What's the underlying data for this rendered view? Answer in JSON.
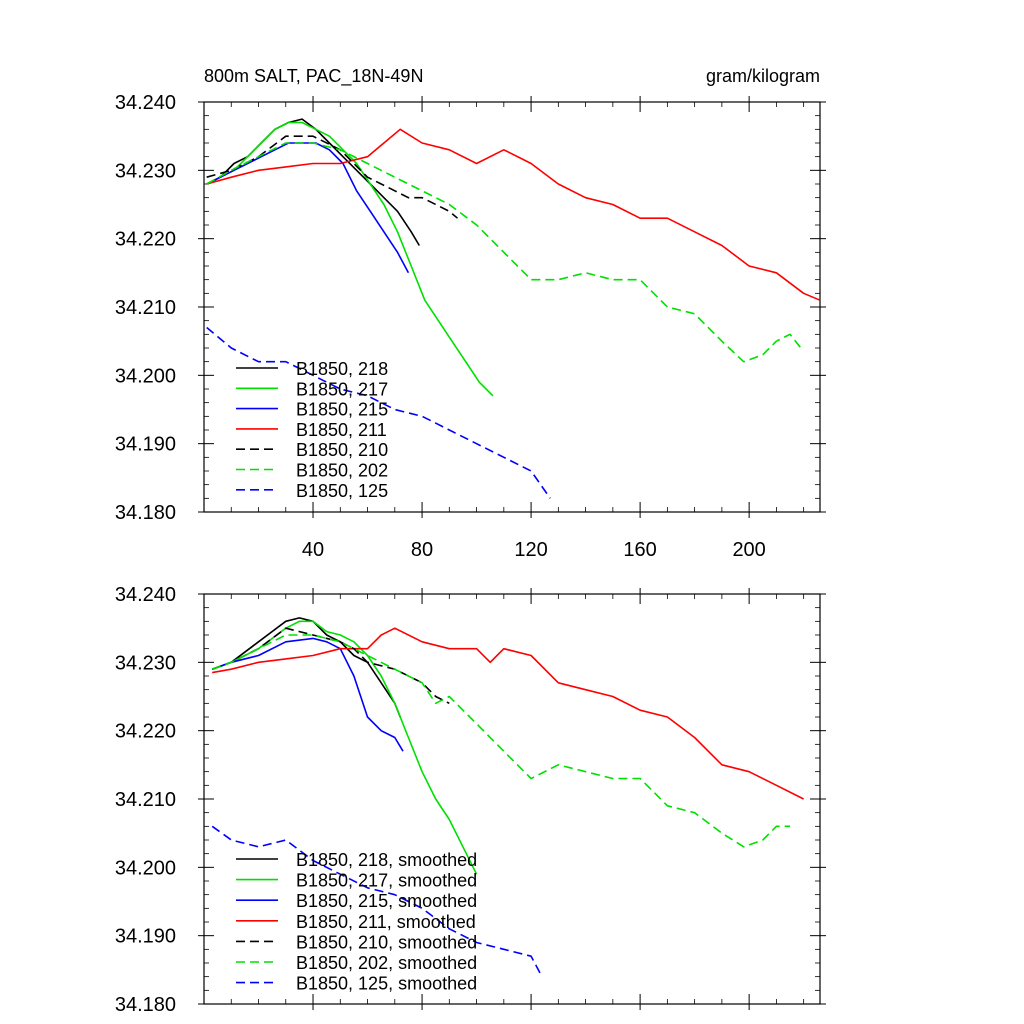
{
  "chart_data": [
    {
      "type": "line",
      "title": "800m SALT, PAC_18N-49N",
      "units": "gram/kilogram",
      "xlim": [
        0,
        226
      ],
      "ylim": [
        34.18,
        34.24
      ],
      "x_ticks": [
        40,
        80,
        120,
        160,
        200
      ],
      "x_tick_labels": [
        "40",
        "80",
        "120",
        "160",
        "200"
      ],
      "y_ticks": [
        34.18,
        34.19,
        34.2,
        34.21,
        34.22,
        34.23,
        34.24
      ],
      "y_tick_labels": [
        "34.180",
        "34.190",
        "34.200",
        "34.210",
        "34.220",
        "34.230",
        "34.240"
      ],
      "legend_position": "bottom-left",
      "series": [
        {
          "name": "B1850, 218",
          "color": "#000000",
          "dash": "solid",
          "x": [
            1,
            6,
            11,
            16,
            21,
            26,
            31,
            36,
            41,
            46,
            51,
            56,
            61,
            66,
            71,
            76,
            79
          ],
          "y": [
            34.228,
            34.229,
            34.231,
            34.232,
            34.234,
            34.236,
            34.237,
            34.2375,
            34.236,
            34.234,
            34.232,
            34.23,
            34.228,
            34.226,
            34.224,
            34.221,
            34.219
          ]
        },
        {
          "name": "B1850, 217",
          "color": "#00e000",
          "dash": "solid",
          "x": [
            1,
            6,
            11,
            16,
            21,
            26,
            31,
            36,
            41,
            46,
            51,
            56,
            61,
            66,
            71,
            76,
            81,
            86,
            91,
            96,
            101,
            106
          ],
          "y": [
            34.228,
            34.229,
            34.23,
            34.232,
            34.234,
            34.236,
            34.237,
            34.237,
            34.236,
            34.235,
            34.233,
            34.231,
            34.228,
            34.225,
            34.221,
            34.216,
            34.211,
            34.208,
            34.205,
            34.202,
            34.199,
            34.197
          ]
        },
        {
          "name": "B1850, 215",
          "color": "#0000ff",
          "dash": "solid",
          "x": [
            1,
            6,
            11,
            16,
            21,
            26,
            31,
            36,
            41,
            46,
            51,
            56,
            61,
            66,
            71,
            75
          ],
          "y": [
            34.228,
            34.229,
            34.23,
            34.231,
            34.232,
            34.233,
            34.234,
            34.234,
            34.234,
            34.233,
            34.231,
            34.227,
            34.224,
            34.221,
            34.218,
            34.215
          ]
        },
        {
          "name": "B1850, 211",
          "color": "#ff0000",
          "dash": "solid",
          "x": [
            1,
            10,
            20,
            30,
            40,
            50,
            60,
            66,
            72,
            80,
            90,
            100,
            110,
            120,
            130,
            140,
            150,
            160,
            170,
            180,
            190,
            200,
            210,
            220,
            226
          ],
          "y": [
            34.228,
            34.229,
            34.23,
            34.2305,
            34.231,
            34.231,
            34.232,
            34.234,
            34.236,
            34.234,
            34.233,
            34.231,
            34.233,
            34.231,
            34.228,
            34.226,
            34.225,
            34.223,
            34.223,
            34.221,
            34.219,
            34.216,
            34.215,
            34.212,
            34.211
          ]
        },
        {
          "name": "B1850, 210",
          "color": "#000000",
          "dash": "dashed",
          "x": [
            1,
            10,
            20,
            30,
            40,
            50,
            55,
            60,
            65,
            70,
            75,
            80,
            85,
            90,
            93
          ],
          "y": [
            34.229,
            34.23,
            34.232,
            34.235,
            34.235,
            34.233,
            34.231,
            34.229,
            34.228,
            34.227,
            34.226,
            34.226,
            34.225,
            34.224,
            34.223
          ]
        },
        {
          "name": "B1850, 202",
          "color": "#00e000",
          "dash": "dashed",
          "x": [
            1,
            10,
            20,
            30,
            40,
            50,
            60,
            70,
            80,
            90,
            100,
            110,
            120,
            130,
            140,
            150,
            160,
            170,
            180,
            190,
            198,
            205,
            210,
            215,
            219
          ],
          "y": [
            34.228,
            34.23,
            34.232,
            34.234,
            34.234,
            34.233,
            34.231,
            34.229,
            34.227,
            34.225,
            34.222,
            34.218,
            34.214,
            34.214,
            34.215,
            34.214,
            34.214,
            34.21,
            34.209,
            34.205,
            34.202,
            34.203,
            34.205,
            34.206,
            34.204
          ]
        },
        {
          "name": "B1850, 125",
          "color": "#0000ff",
          "dash": "dashed",
          "x": [
            1,
            10,
            20,
            30,
            40,
            50,
            60,
            70,
            80,
            90,
            100,
            110,
            120,
            127
          ],
          "y": [
            34.207,
            34.204,
            34.202,
            34.202,
            34.2,
            34.198,
            34.197,
            34.195,
            34.194,
            34.192,
            34.19,
            34.188,
            34.186,
            34.182
          ]
        }
      ]
    },
    {
      "type": "line",
      "xlim": [
        0,
        226
      ],
      "ylim": [
        34.18,
        34.24
      ],
      "y_ticks": [
        34.18,
        34.19,
        34.2,
        34.21,
        34.22,
        34.23,
        34.24
      ],
      "y_tick_labels": [
        "34.180",
        "34.190",
        "34.200",
        "34.210",
        "34.220",
        "34.230",
        "34.240"
      ],
      "legend_position": "bottom-left",
      "series": [
        {
          "name": "B1850, 218, smoothed",
          "color": "#000000",
          "dash": "solid",
          "x": [
            3,
            10,
            20,
            30,
            35,
            40,
            45,
            50,
            55,
            60,
            65,
            70,
            72
          ],
          "y": [
            34.229,
            34.23,
            34.233,
            34.236,
            34.2365,
            34.236,
            34.234,
            34.233,
            34.231,
            34.23,
            34.227,
            34.224,
            34.222
          ]
        },
        {
          "name": "B1850, 217, smoothed",
          "color": "#00e000",
          "dash": "solid",
          "x": [
            3,
            10,
            20,
            30,
            35,
            40,
            45,
            50,
            55,
            60,
            65,
            70,
            75,
            80,
            85,
            90,
            95,
            100
          ],
          "y": [
            34.229,
            34.23,
            34.232,
            34.235,
            34.236,
            34.236,
            34.2345,
            34.234,
            34.233,
            34.231,
            34.228,
            34.224,
            34.219,
            34.214,
            34.21,
            34.207,
            34.203,
            34.199
          ]
        },
        {
          "name": "B1850, 215, smoothed",
          "color": "#0000ff",
          "dash": "solid",
          "x": [
            3,
            10,
            20,
            30,
            40,
            45,
            50,
            55,
            60,
            65,
            70,
            73
          ],
          "y": [
            34.229,
            34.23,
            34.231,
            34.233,
            34.2335,
            34.233,
            34.232,
            34.228,
            34.222,
            34.22,
            34.219,
            34.217
          ]
        },
        {
          "name": "B1850, 211, smoothed",
          "color": "#ff0000",
          "dash": "solid",
          "x": [
            3,
            10,
            20,
            30,
            40,
            50,
            60,
            65,
            70,
            80,
            90,
            100,
            105,
            110,
            120,
            130,
            140,
            150,
            160,
            170,
            180,
            190,
            200,
            210,
            220
          ],
          "y": [
            34.2285,
            34.229,
            34.23,
            34.2305,
            34.231,
            34.232,
            34.232,
            34.234,
            34.235,
            34.233,
            34.232,
            34.232,
            34.23,
            34.232,
            34.231,
            34.227,
            34.226,
            34.225,
            34.223,
            34.222,
            34.219,
            34.215,
            34.214,
            34.212,
            34.21
          ]
        },
        {
          "name": "B1850, 210, smoothed",
          "color": "#000000",
          "dash": "dashed",
          "x": [
            3,
            10,
            20,
            30,
            40,
            50,
            55,
            60,
            70,
            80,
            85,
            90
          ],
          "y": [
            34.229,
            34.23,
            34.232,
            34.235,
            34.234,
            34.233,
            34.232,
            34.23,
            34.229,
            34.227,
            34.225,
            34.224
          ]
        },
        {
          "name": "B1850, 202, smoothed",
          "color": "#00e000",
          "dash": "dashed",
          "x": [
            3,
            10,
            20,
            30,
            40,
            50,
            60,
            70,
            80,
            85,
            90,
            100,
            110,
            120,
            130,
            140,
            150,
            160,
            170,
            180,
            190,
            198,
            205,
            210,
            215
          ],
          "y": [
            34.229,
            34.23,
            34.232,
            34.234,
            34.234,
            34.233,
            34.231,
            34.229,
            34.227,
            34.224,
            34.225,
            34.221,
            34.217,
            34.213,
            34.215,
            34.214,
            34.213,
            34.213,
            34.209,
            34.208,
            34.205,
            34.203,
            34.204,
            34.206,
            34.206
          ]
        },
        {
          "name": "B1850, 125, smoothed",
          "color": "#0000ff",
          "dash": "dashed",
          "x": [
            3,
            10,
            20,
            30,
            40,
            50,
            60,
            70,
            80,
            90,
            100,
            110,
            120,
            124
          ],
          "y": [
            34.206,
            34.204,
            34.203,
            34.204,
            34.201,
            34.199,
            34.197,
            34.196,
            34.194,
            34.191,
            34.189,
            34.188,
            34.187,
            34.184
          ]
        }
      ]
    }
  ]
}
